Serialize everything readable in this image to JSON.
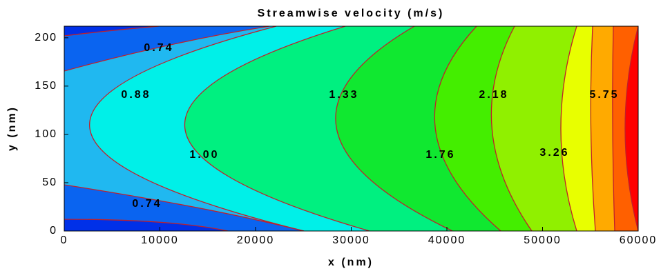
{
  "chart_data": {
    "type": "contour",
    "title": "Streamwise velocity (m/s)",
    "xlabel": "x (nm)",
    "ylabel": "y (nm)",
    "xlim": [
      0,
      60000
    ],
    "xticks": [
      0,
      10000,
      20000,
      30000,
      40000,
      50000,
      60000
    ],
    "ylim": [
      0,
      212
    ],
    "yticks": [
      0,
      50,
      100,
      150,
      200
    ],
    "contour_labels": [
      "0.74",
      "0.88",
      "1.00",
      "1.33",
      "1.76",
      "2.18",
      "3.26",
      "5.75",
      "0.74"
    ]
  }
}
